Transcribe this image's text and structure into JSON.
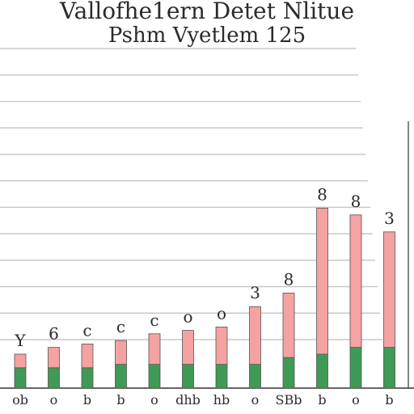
{
  "chart_data": {
    "type": "bar",
    "title": "Vallofhe1ern Detet Nlitue",
    "subtitle": "Pshm Vyetlem 125",
    "ylim": [
      0,
      10
    ],
    "grid": true,
    "categories": [
      "ob",
      "o",
      "b",
      "b",
      "o",
      "dhb",
      "hb",
      "o",
      "SBb",
      "b",
      "o",
      "b"
    ],
    "series": [
      {
        "color": "#3f9a55",
        "values": [
          0.6,
          0.6,
          0.6,
          0.7,
          0.7,
          0.7,
          0.7,
          0.7,
          0.9,
          1.0,
          1.2,
          1.2
        ]
      },
      {
        "color": "#f4a2a2",
        "values": [
          0.4,
          0.6,
          0.7,
          0.7,
          0.9,
          1.0,
          1.1,
          1.7,
          1.9,
          4.3,
          3.9,
          3.4
        ]
      }
    ],
    "data_labels": [
      "Y",
      "6",
      "c",
      "c",
      "c",
      "o",
      "o",
      "3",
      "8",
      "8",
      "8",
      "3"
    ]
  },
  "colors": {
    "grid": "#c9c9c9",
    "axis": "#333333",
    "text": "#2b2b2b"
  }
}
